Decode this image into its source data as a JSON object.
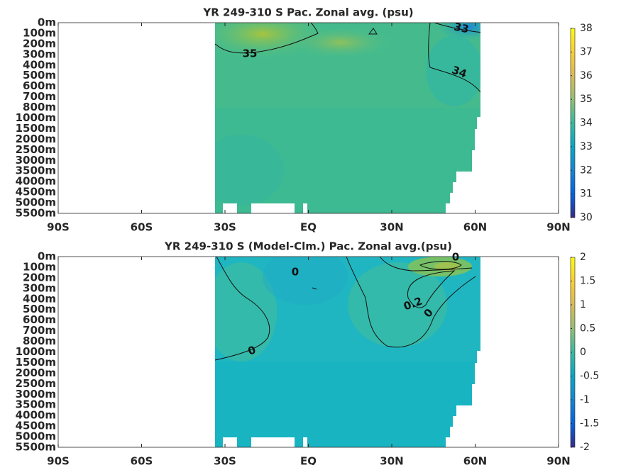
{
  "chart_data": [
    {
      "type": "contour",
      "title": "YR 249-310 S Pac. Zonal avg. (psu)",
      "ycategories": [
        "0m",
        "100m",
        "200m",
        "300m",
        "400m",
        "500m",
        "600m",
        "700m",
        "800m",
        "1000m",
        "1500m",
        "2000m",
        "2500m",
        "3000m",
        "3500m",
        "4000m",
        "4500m",
        "5000m",
        "5500m"
      ],
      "xlim": [
        -90,
        90
      ],
      "xticks": [
        {
          "value": -90,
          "label": "90S"
        },
        {
          "value": -60,
          "label": "60S"
        },
        {
          "value": -30,
          "label": "30S"
        },
        {
          "value": 0,
          "label": "EQ"
        },
        {
          "value": 30,
          "label": "30N"
        },
        {
          "value": 60,
          "label": "60N"
        },
        {
          "value": 90,
          "label": "90N"
        }
      ],
      "clim": [
        30,
        38
      ],
      "cticks": [
        30,
        31,
        32,
        33,
        34,
        35,
        36,
        37,
        38
      ],
      "contour_labels": [
        33,
        35,
        34
      ]
    },
    {
      "type": "contour",
      "title": "YR 249-310 S (Model-Clm.) Pac. Zonal avg.(psu)",
      "ycategories": [
        "0m",
        "100m",
        "200m",
        "300m",
        "400m",
        "500m",
        "600m",
        "700m",
        "800m",
        "1000m",
        "1500m",
        "2000m",
        "2500m",
        "3000m",
        "3500m",
        "4000m",
        "4500m",
        "5000m",
        "5500m"
      ],
      "xlim": [
        -90,
        90
      ],
      "xticks": [
        {
          "value": -90,
          "label": "90S"
        },
        {
          "value": -60,
          "label": "60S"
        },
        {
          "value": -30,
          "label": "30S"
        },
        {
          "value": 0,
          "label": "EQ"
        },
        {
          "value": 30,
          "label": "30N"
        },
        {
          "value": 60,
          "label": "60N"
        },
        {
          "value": 90,
          "label": "90N"
        }
      ],
      "clim": [
        -2,
        2
      ],
      "cticks": [
        -2,
        -1.5,
        -1,
        -0.5,
        0,
        0.5,
        1,
        1.5,
        2
      ],
      "contour_labels": [
        0,
        0,
        0,
        0.2,
        0
      ]
    }
  ]
}
